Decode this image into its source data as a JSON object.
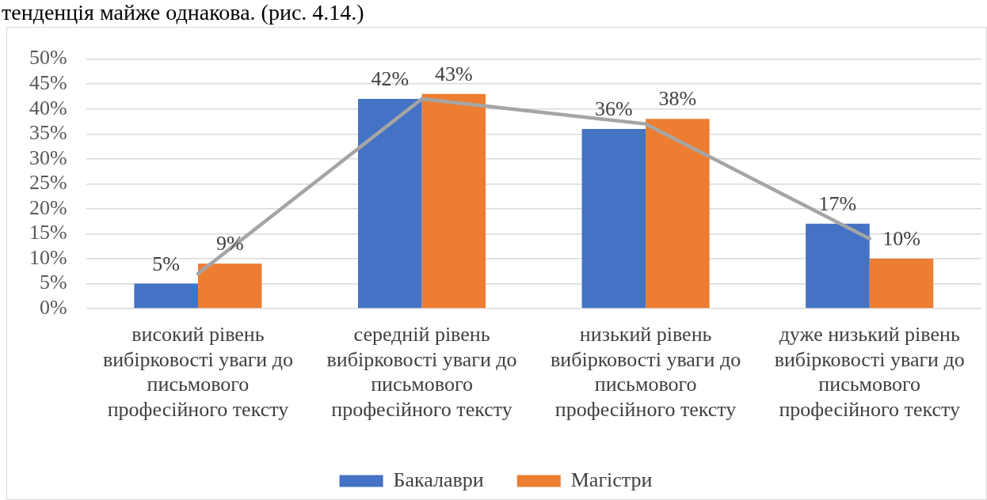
{
  "chart_data": {
    "type": "bar",
    "annotations": [
      "тенденція майже однакова. (рис. 4.14.)"
    ],
    "categories": [
      "високий рівень вибірковості уваги до письмового професійного тексту",
      "середній рівень вибірковості уваги до письмового професійного тексту",
      "низький рівень вибірковості уваги до письмового професійного тексту",
      "дуже низький рівень вибірковості уваги до письмового професійного тексту"
    ],
    "series": [
      {
        "name": "Бакалаври",
        "color": "#4472c4",
        "values": [
          5,
          42,
          36,
          17
        ],
        "value_labels": [
          "5%",
          "42%",
          "36%",
          "17%"
        ]
      },
      {
        "name": "Магістри",
        "color": "#ed7d31",
        "values": [
          9,
          43,
          38,
          10
        ],
        "value_labels": [
          "9%",
          "43%",
          "38%",
          "10%"
        ]
      },
      {
        "type": "line",
        "color": "#a5a5a5",
        "values": [
          7,
          42,
          37,
          14
        ]
      }
    ],
    "ylim": [
      0,
      50
    ],
    "yticks": [
      {
        "value": 0,
        "label": "0%"
      },
      {
        "value": 5,
        "label": "5%"
      },
      {
        "value": 10,
        "label": "10%"
      },
      {
        "value": 15,
        "label": "15%"
      },
      {
        "value": 20,
        "label": "20%"
      },
      {
        "value": 25,
        "label": "25%"
      },
      {
        "value": 30,
        "label": "30%"
      },
      {
        "value": 35,
        "label": "35%"
      },
      {
        "value": 40,
        "label": "40%"
      },
      {
        "value": 45,
        "label": "45%"
      },
      {
        "value": 50,
        "label": "50%"
      }
    ],
    "grid": "y",
    "legend": "bottom",
    "marker": "none"
  }
}
